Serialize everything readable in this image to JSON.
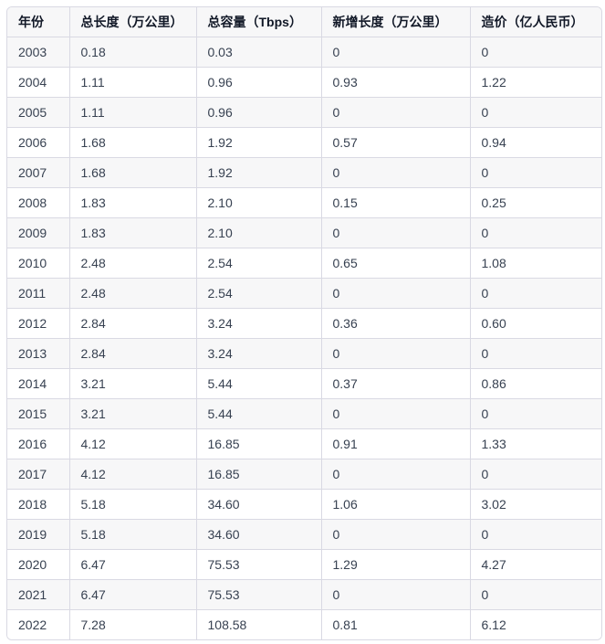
{
  "table": {
    "headers": [
      "年份",
      "总长度（万公里）",
      "总容量（Tbps）",
      "新增长度（万公里）",
      "造价（亿人民币）"
    ],
    "rows": [
      [
        "2003",
        "0.18",
        "0.03",
        "0",
        "0"
      ],
      [
        "2004",
        "1.11",
        "0.96",
        "0.93",
        "1.22"
      ],
      [
        "2005",
        "1.11",
        "0.96",
        "0",
        "0"
      ],
      [
        "2006",
        "1.68",
        "1.92",
        "0.57",
        "0.94"
      ],
      [
        "2007",
        "1.68",
        "1.92",
        "0",
        "0"
      ],
      [
        "2008",
        "1.83",
        "2.10",
        "0.15",
        "0.25"
      ],
      [
        "2009",
        "1.83",
        "2.10",
        "0",
        "0"
      ],
      [
        "2010",
        "2.48",
        "2.54",
        "0.65",
        "1.08"
      ],
      [
        "2011",
        "2.48",
        "2.54",
        "0",
        "0"
      ],
      [
        "2012",
        "2.84",
        "3.24",
        "0.36",
        "0.60"
      ],
      [
        "2013",
        "2.84",
        "3.24",
        "0",
        "0"
      ],
      [
        "2014",
        "3.21",
        "5.44",
        "0.37",
        "0.86"
      ],
      [
        "2015",
        "3.21",
        "5.44",
        "0",
        "0"
      ],
      [
        "2016",
        "4.12",
        "16.85",
        "0.91",
        "1.33"
      ],
      [
        "2017",
        "4.12",
        "16.85",
        "0",
        "0"
      ],
      [
        "2018",
        "5.18",
        "34.60",
        "1.06",
        "3.02"
      ],
      [
        "2019",
        "5.18",
        "34.60",
        "0",
        "0"
      ],
      [
        "2020",
        "6.47",
        "75.53",
        "1.29",
        "4.27"
      ],
      [
        "2021",
        "6.47",
        "75.53",
        "0",
        "0"
      ],
      [
        "2022",
        "7.28",
        "108.58",
        "0.81",
        "6.12"
      ]
    ]
  }
}
